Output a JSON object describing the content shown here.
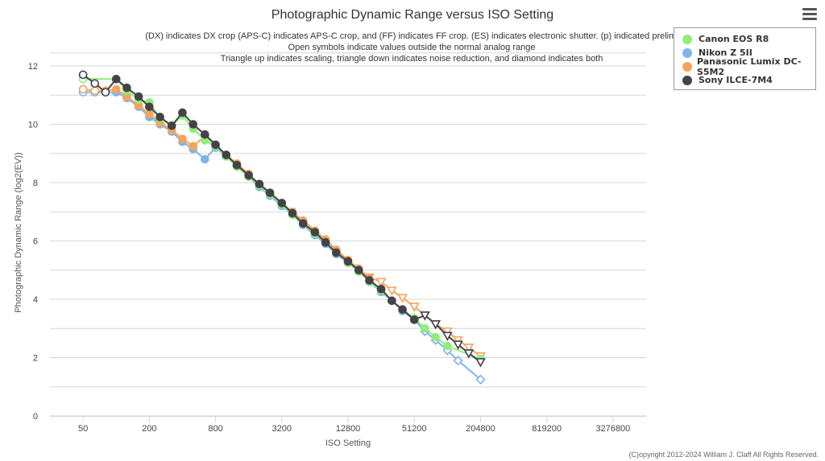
{
  "chart_data": {
    "type": "line",
    "title": "Photographic Dynamic Range versus ISO Setting",
    "subtitle_lines": [
      "(DX) indicates DX crop (APS-C) indicates APS-C crop, and (FF) indicates FF crop. (ES) indicates electronic shutter. (p) indicated prelimi",
      "Open symbols indicate values outside the normal analog range",
      "Triangle up indicates scaling, triangle down indicates noise reduction, and diamond indicates both"
    ],
    "xlabel": "ISO Setting",
    "ylabel": "Photographic Dynamic Range (log2(EV))",
    "x_scale": "log2",
    "x_ticks": [
      50,
      200,
      800,
      3200,
      12800,
      51200,
      204800,
      819200,
      3276800
    ],
    "xlim": [
      25,
      6553600
    ],
    "ylim": [
      0,
      12
    ],
    "y_ticks": [
      0,
      2,
      4,
      6,
      8,
      10,
      12
    ],
    "grid": true,
    "legend_position": "top-right",
    "series": [
      {
        "name": "Canon EOS R8",
        "color": "#90ed7d",
        "points": [
          {
            "iso": 50,
            "dr": 11.55,
            "marker": "circle",
            "open": true
          },
          {
            "iso": 100,
            "dr": 11.55,
            "marker": "circle"
          },
          {
            "iso": 125,
            "dr": 11.15,
            "marker": "circle"
          },
          {
            "iso": 160,
            "dr": 10.85,
            "marker": "circle"
          },
          {
            "iso": 200,
            "dr": 10.75,
            "marker": "circle"
          },
          {
            "iso": 250,
            "dr": 10.2,
            "marker": "circle"
          },
          {
            "iso": 320,
            "dr": 9.95,
            "marker": "circle"
          },
          {
            "iso": 400,
            "dr": 10.3,
            "marker": "circle"
          },
          {
            "iso": 500,
            "dr": 9.85,
            "marker": "circle"
          },
          {
            "iso": 640,
            "dr": 9.45,
            "marker": "circle"
          },
          {
            "iso": 800,
            "dr": 9.25,
            "marker": "circle"
          },
          {
            "iso": 1000,
            "dr": 8.9,
            "marker": "circle"
          },
          {
            "iso": 1250,
            "dr": 8.55,
            "marker": "circle"
          },
          {
            "iso": 1600,
            "dr": 8.2,
            "marker": "circle"
          },
          {
            "iso": 2000,
            "dr": 7.9,
            "marker": "circle"
          },
          {
            "iso": 2500,
            "dr": 7.6,
            "marker": "circle"
          },
          {
            "iso": 3200,
            "dr": 7.25,
            "marker": "circle"
          },
          {
            "iso": 4000,
            "dr": 6.9,
            "marker": "circle"
          },
          {
            "iso": 5000,
            "dr": 6.6,
            "marker": "circle"
          },
          {
            "iso": 6400,
            "dr": 6.25,
            "marker": "circle"
          },
          {
            "iso": 8000,
            "dr": 5.95,
            "marker": "circle"
          },
          {
            "iso": 10000,
            "dr": 5.6,
            "marker": "circle"
          },
          {
            "iso": 12800,
            "dr": 5.25,
            "marker": "circle"
          },
          {
            "iso": 16000,
            "dr": 4.95,
            "marker": "circle"
          },
          {
            "iso": 20000,
            "dr": 4.6,
            "marker": "circle"
          },
          {
            "iso": 25600,
            "dr": 4.3,
            "marker": "circle"
          },
          {
            "iso": 32000,
            "dr": 3.95,
            "marker": "circle"
          },
          {
            "iso": 40000,
            "dr": 3.65,
            "marker": "circle"
          },
          {
            "iso": 51200,
            "dr": 3.35,
            "marker": "circle"
          },
          {
            "iso": 64000,
            "dr": 3.0,
            "marker": "circle"
          },
          {
            "iso": 80000,
            "dr": 2.7,
            "marker": "circle"
          },
          {
            "iso": 102400,
            "dr": 2.4,
            "marker": "circle"
          },
          {
            "iso": 204800,
            "dr": 1.95,
            "marker": "circle"
          }
        ]
      },
      {
        "name": "Nikon Z 5II",
        "color": "#7cb5ec",
        "points": [
          {
            "iso": 50,
            "dr": 11.1,
            "marker": "circle",
            "open": true
          },
          {
            "iso": 64,
            "dr": 11.1,
            "marker": "circle",
            "open": true
          },
          {
            "iso": 100,
            "dr": 11.1,
            "marker": "circle"
          },
          {
            "iso": 125,
            "dr": 10.9,
            "marker": "circle"
          },
          {
            "iso": 160,
            "dr": 10.6,
            "marker": "circle"
          },
          {
            "iso": 200,
            "dr": 10.25,
            "marker": "circle"
          },
          {
            "iso": 250,
            "dr": 10.0,
            "marker": "circle"
          },
          {
            "iso": 320,
            "dr": 9.75,
            "marker": "circle"
          },
          {
            "iso": 400,
            "dr": 9.4,
            "marker": "circle"
          },
          {
            "iso": 500,
            "dr": 9.15,
            "marker": "circle"
          },
          {
            "iso": 640,
            "dr": 8.8,
            "marker": "circle"
          },
          {
            "iso": 800,
            "dr": 9.2,
            "marker": "circle"
          },
          {
            "iso": 1000,
            "dr": 8.9,
            "marker": "circle"
          },
          {
            "iso": 1250,
            "dr": 8.55,
            "marker": "circle"
          },
          {
            "iso": 1600,
            "dr": 8.2,
            "marker": "circle"
          },
          {
            "iso": 2000,
            "dr": 7.85,
            "marker": "circle"
          },
          {
            "iso": 2500,
            "dr": 7.55,
            "marker": "circle"
          },
          {
            "iso": 3200,
            "dr": 7.2,
            "marker": "circle"
          },
          {
            "iso": 4000,
            "dr": 6.9,
            "marker": "circle"
          },
          {
            "iso": 5000,
            "dr": 6.55,
            "marker": "circle"
          },
          {
            "iso": 6400,
            "dr": 6.2,
            "marker": "circle"
          },
          {
            "iso": 8000,
            "dr": 5.9,
            "marker": "circle"
          },
          {
            "iso": 10000,
            "dr": 5.55,
            "marker": "circle"
          },
          {
            "iso": 12800,
            "dr": 5.25,
            "marker": "circle"
          },
          {
            "iso": 16000,
            "dr": 4.95,
            "marker": "circle"
          },
          {
            "iso": 20000,
            "dr": 4.6,
            "marker": "circle"
          },
          {
            "iso": 25600,
            "dr": 4.25,
            "marker": "circle"
          },
          {
            "iso": 32000,
            "dr": 3.95,
            "marker": "circle"
          },
          {
            "iso": 40000,
            "dr": 3.6,
            "marker": "circle"
          },
          {
            "iso": 51200,
            "dr": 3.3,
            "marker": "circle"
          },
          {
            "iso": 64000,
            "dr": 2.9,
            "marker": "diamond",
            "open": true
          },
          {
            "iso": 80000,
            "dr": 2.6,
            "marker": "diamond",
            "open": true
          },
          {
            "iso": 102400,
            "dr": 2.25,
            "marker": "diamond",
            "open": true
          },
          {
            "iso": 128000,
            "dr": 1.9,
            "marker": "diamond",
            "open": true
          },
          {
            "iso": 204800,
            "dr": 1.25,
            "marker": "diamond",
            "open": true
          }
        ]
      },
      {
        "name": "Panasonic Lumix DC-S5M2",
        "color": "#f7a35c",
        "points": [
          {
            "iso": 50,
            "dr": 11.2,
            "marker": "circle",
            "open": true
          },
          {
            "iso": 64,
            "dr": 11.15,
            "marker": "circle",
            "open": true
          },
          {
            "iso": 80,
            "dr": 11.15,
            "marker": "circle",
            "open": true
          },
          {
            "iso": 100,
            "dr": 11.2,
            "marker": "circle"
          },
          {
            "iso": 125,
            "dr": 10.95,
            "marker": "circle"
          },
          {
            "iso": 160,
            "dr": 10.65,
            "marker": "circle"
          },
          {
            "iso": 200,
            "dr": 10.35,
            "marker": "circle"
          },
          {
            "iso": 250,
            "dr": 10.05,
            "marker": "circle"
          },
          {
            "iso": 320,
            "dr": 9.8,
            "marker": "circle"
          },
          {
            "iso": 400,
            "dr": 9.5,
            "marker": "circle"
          },
          {
            "iso": 500,
            "dr": 9.25,
            "marker": "circle"
          },
          {
            "iso": 640,
            "dr": 9.6,
            "marker": "circle"
          },
          {
            "iso": 800,
            "dr": 9.3,
            "marker": "circle"
          },
          {
            "iso": 1000,
            "dr": 8.95,
            "marker": "circle"
          },
          {
            "iso": 1250,
            "dr": 8.65,
            "marker": "circle"
          },
          {
            "iso": 1600,
            "dr": 8.3,
            "marker": "circle"
          },
          {
            "iso": 2000,
            "dr": 7.95,
            "marker": "circle"
          },
          {
            "iso": 2500,
            "dr": 7.65,
            "marker": "circle"
          },
          {
            "iso": 3200,
            "dr": 7.3,
            "marker": "circle"
          },
          {
            "iso": 4000,
            "dr": 7.0,
            "marker": "circle"
          },
          {
            "iso": 5000,
            "dr": 6.7,
            "marker": "circle"
          },
          {
            "iso": 6400,
            "dr": 6.35,
            "marker": "circle"
          },
          {
            "iso": 8000,
            "dr": 6.05,
            "marker": "circle"
          },
          {
            "iso": 10000,
            "dr": 5.7,
            "marker": "circle"
          },
          {
            "iso": 12800,
            "dr": 5.35,
            "marker": "circle"
          },
          {
            "iso": 16000,
            "dr": 5.05,
            "marker": "circle"
          },
          {
            "iso": 20000,
            "dr": 4.75,
            "marker": "triangle-down"
          },
          {
            "iso": 25600,
            "dr": 4.6,
            "marker": "triangle-down",
            "open": true
          },
          {
            "iso": 32000,
            "dr": 4.3,
            "marker": "triangle-down",
            "open": true
          },
          {
            "iso": 40000,
            "dr": 4.05,
            "marker": "triangle-down",
            "open": true
          },
          {
            "iso": 51200,
            "dr": 3.75,
            "marker": "triangle-down",
            "open": true
          },
          {
            "iso": 64000,
            "dr": 3.45,
            "marker": "triangle-down",
            "open": true
          },
          {
            "iso": 80000,
            "dr": 3.15,
            "marker": "triangle-down",
            "open": true
          },
          {
            "iso": 102400,
            "dr": 2.9,
            "marker": "triangle-down",
            "open": true
          },
          {
            "iso": 128000,
            "dr": 2.6,
            "marker": "triangle-down",
            "open": true
          },
          {
            "iso": 160000,
            "dr": 2.35,
            "marker": "triangle-down",
            "open": true
          },
          {
            "iso": 204800,
            "dr": 2.05,
            "marker": "triangle-down",
            "open": true
          }
        ]
      },
      {
        "name": "Sony ILCE-7M4",
        "color": "#434348",
        "points": [
          {
            "iso": 50,
            "dr": 11.7,
            "marker": "circle",
            "open": true
          },
          {
            "iso": 64,
            "dr": 11.4,
            "marker": "circle",
            "open": true
          },
          {
            "iso": 80,
            "dr": 11.1,
            "marker": "circle",
            "open": true
          },
          {
            "iso": 100,
            "dr": 11.55,
            "marker": "circle"
          },
          {
            "iso": 125,
            "dr": 11.25,
            "marker": "circle"
          },
          {
            "iso": 160,
            "dr": 10.95,
            "marker": "circle"
          },
          {
            "iso": 200,
            "dr": 10.6,
            "marker": "circle"
          },
          {
            "iso": 250,
            "dr": 10.25,
            "marker": "circle"
          },
          {
            "iso": 320,
            "dr": 9.95,
            "marker": "circle"
          },
          {
            "iso": 400,
            "dr": 10.4,
            "marker": "circle"
          },
          {
            "iso": 500,
            "dr": 10.0,
            "marker": "circle"
          },
          {
            "iso": 640,
            "dr": 9.65,
            "marker": "circle"
          },
          {
            "iso": 800,
            "dr": 9.3,
            "marker": "circle"
          },
          {
            "iso": 1000,
            "dr": 8.95,
            "marker": "circle"
          },
          {
            "iso": 1250,
            "dr": 8.6,
            "marker": "circle"
          },
          {
            "iso": 1600,
            "dr": 8.25,
            "marker": "circle"
          },
          {
            "iso": 2000,
            "dr": 7.95,
            "marker": "circle"
          },
          {
            "iso": 2500,
            "dr": 7.65,
            "marker": "circle"
          },
          {
            "iso": 3200,
            "dr": 7.3,
            "marker": "circle"
          },
          {
            "iso": 4000,
            "dr": 6.95,
            "marker": "circle"
          },
          {
            "iso": 5000,
            "dr": 6.6,
            "marker": "circle"
          },
          {
            "iso": 6400,
            "dr": 6.3,
            "marker": "circle"
          },
          {
            "iso": 8000,
            "dr": 5.95,
            "marker": "circle"
          },
          {
            "iso": 10000,
            "dr": 5.6,
            "marker": "circle"
          },
          {
            "iso": 12800,
            "dr": 5.3,
            "marker": "circle"
          },
          {
            "iso": 16000,
            "dr": 5.0,
            "marker": "circle"
          },
          {
            "iso": 20000,
            "dr": 4.65,
            "marker": "circle"
          },
          {
            "iso": 25600,
            "dr": 4.35,
            "marker": "circle"
          },
          {
            "iso": 32000,
            "dr": 3.95,
            "marker": "circle"
          },
          {
            "iso": 40000,
            "dr": 3.65,
            "marker": "circle"
          },
          {
            "iso": 51200,
            "dr": 3.3,
            "marker": "circle"
          },
          {
            "iso": 64000,
            "dr": 3.45,
            "marker": "triangle-down",
            "open": true
          },
          {
            "iso": 80000,
            "dr": 3.15,
            "marker": "triangle-down",
            "open": true
          },
          {
            "iso": 102400,
            "dr": 2.75,
            "marker": "triangle-down",
            "open": true
          },
          {
            "iso": 128000,
            "dr": 2.45,
            "marker": "triangle-down",
            "open": true
          },
          {
            "iso": 160000,
            "dr": 2.15,
            "marker": "triangle-down",
            "open": true
          },
          {
            "iso": 204800,
            "dr": 1.85,
            "marker": "triangle-down",
            "open": true
          }
        ]
      }
    ]
  },
  "credits": "(C)opyright 2012-2024 William J. Claff All Rights Reserved.",
  "menu": {
    "icon": "hamburger-menu-icon"
  }
}
